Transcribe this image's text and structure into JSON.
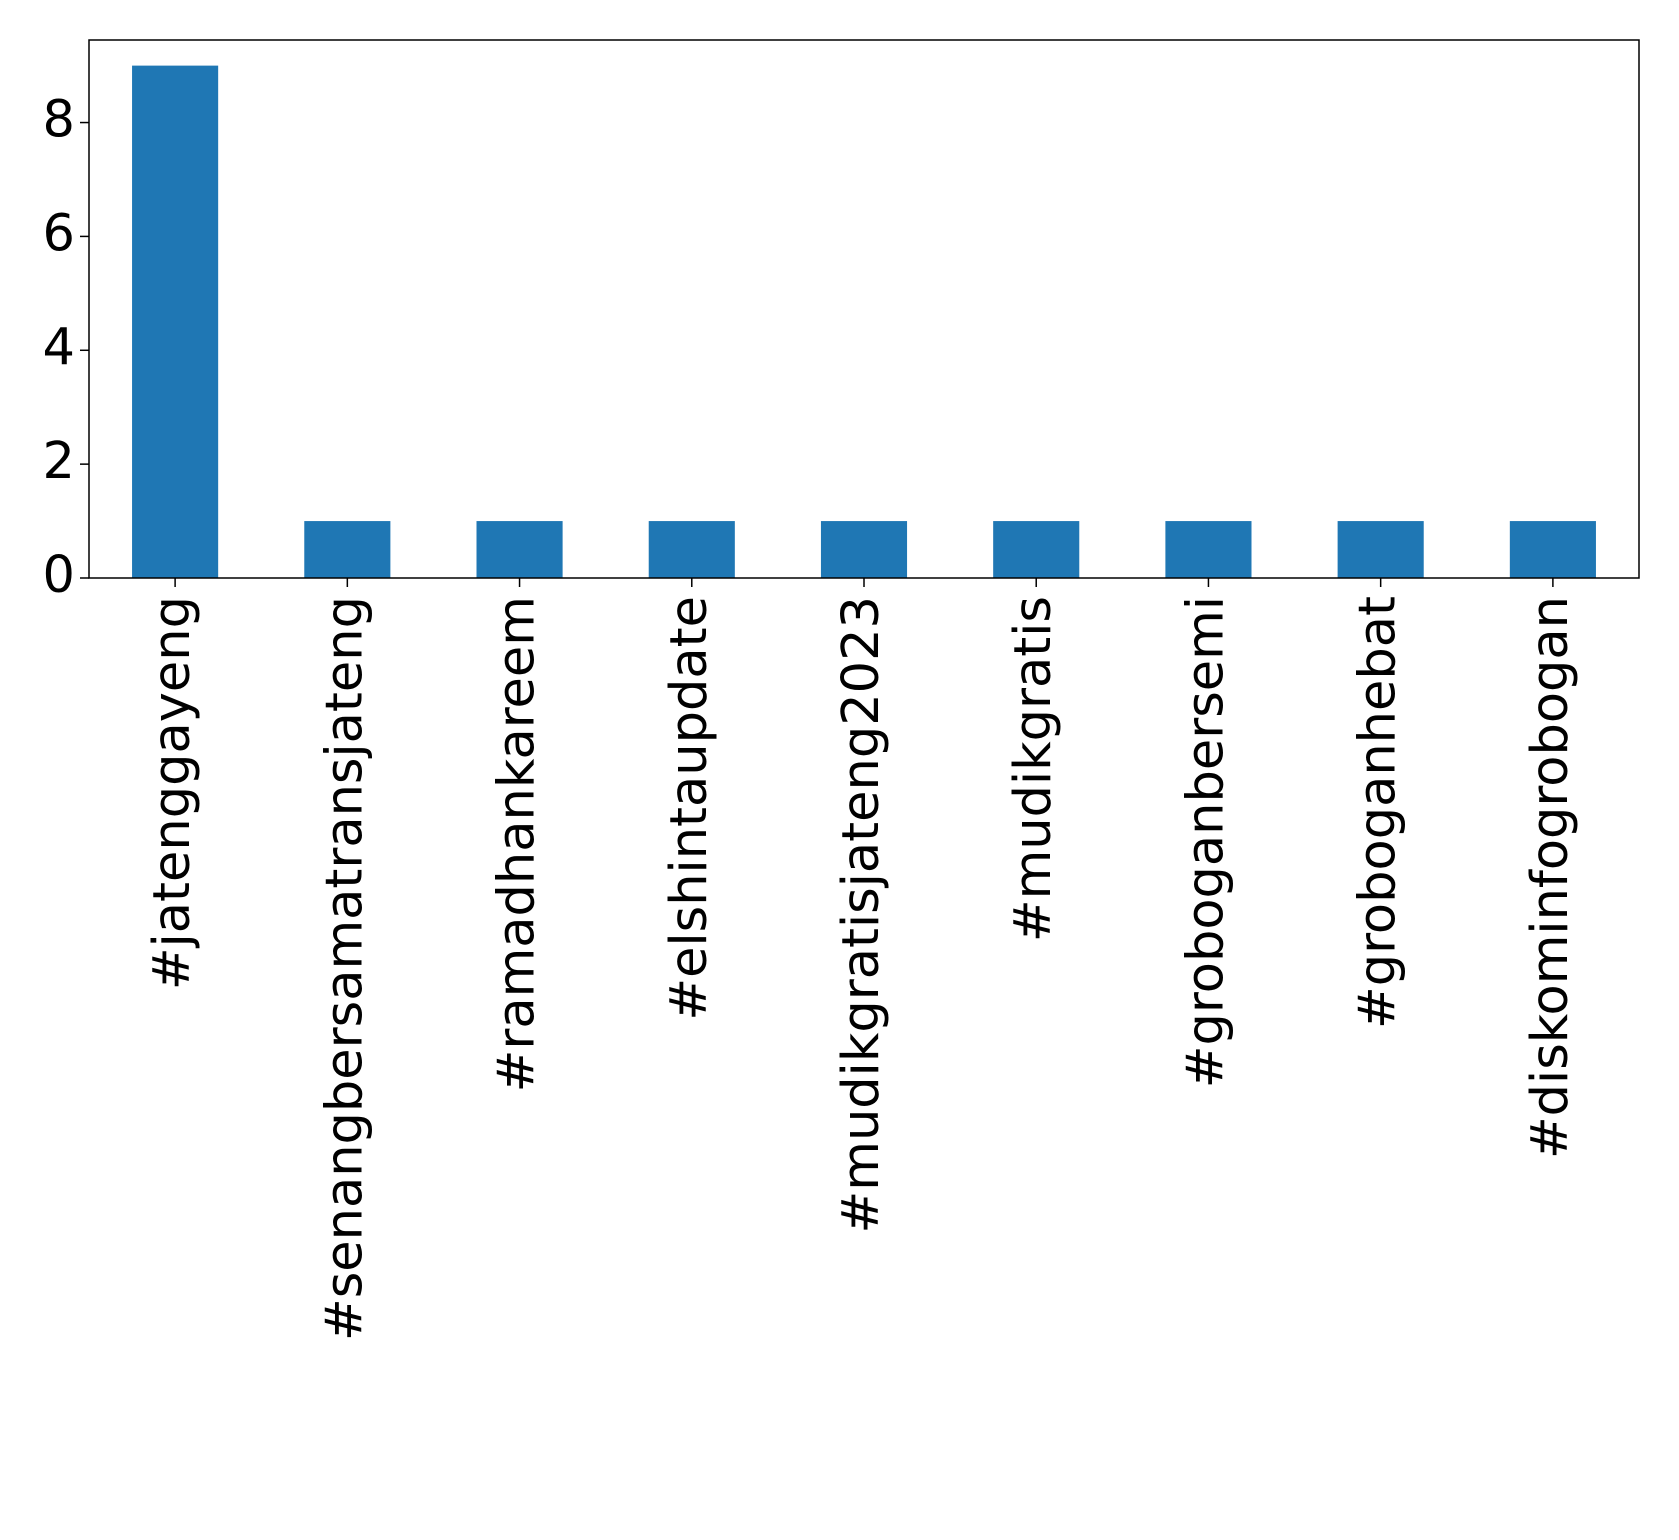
{
  "chart_data": {
    "type": "bar",
    "categories": [
      "#jatenggayeng",
      "#senangbersamatransjateng",
      "#ramadhankareem",
      "#elshintaupdate",
      "#mudikgratisjateng2023",
      "#mudikgratis",
      "#groboganbersemi",
      "#groboganhebat",
      "#diskominfogrobogan"
    ],
    "values": [
      9,
      1,
      1,
      1,
      1,
      1,
      1,
      1,
      1
    ],
    "color": "#1f77b4",
    "ylim": [
      0,
      9.45
    ],
    "yticks": [
      0,
      2,
      4,
      6,
      8
    ],
    "grid": false
  }
}
